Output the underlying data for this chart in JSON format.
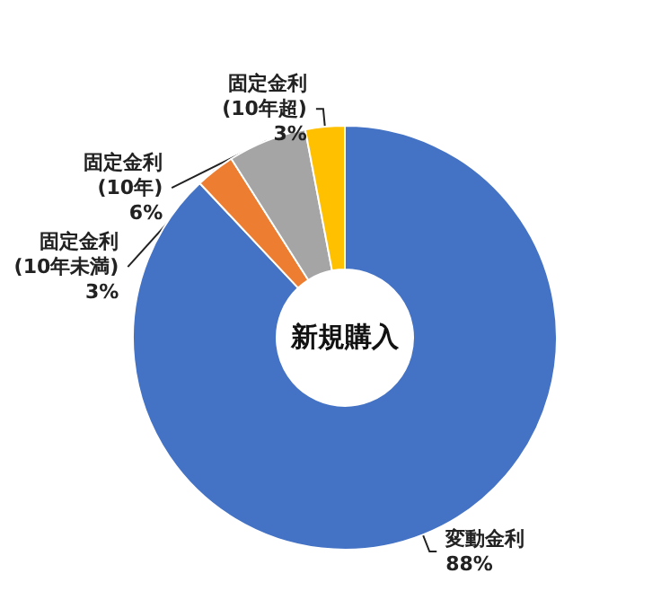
{
  "chart_data": {
    "type": "donut",
    "title": "新規購入",
    "categories": [
      "変動金利",
      "固定金利\n(10年未満)",
      "固定金利\n(10年)",
      "固定金利\n(10年超)"
    ],
    "values": [
      88,
      3,
      6,
      3
    ],
    "value_labels": [
      "88%",
      "3%",
      "6%",
      "3%"
    ],
    "colors": [
      "#4472c4",
      "#ed7d31",
      "#a5a5a5",
      "#ffc000"
    ]
  }
}
